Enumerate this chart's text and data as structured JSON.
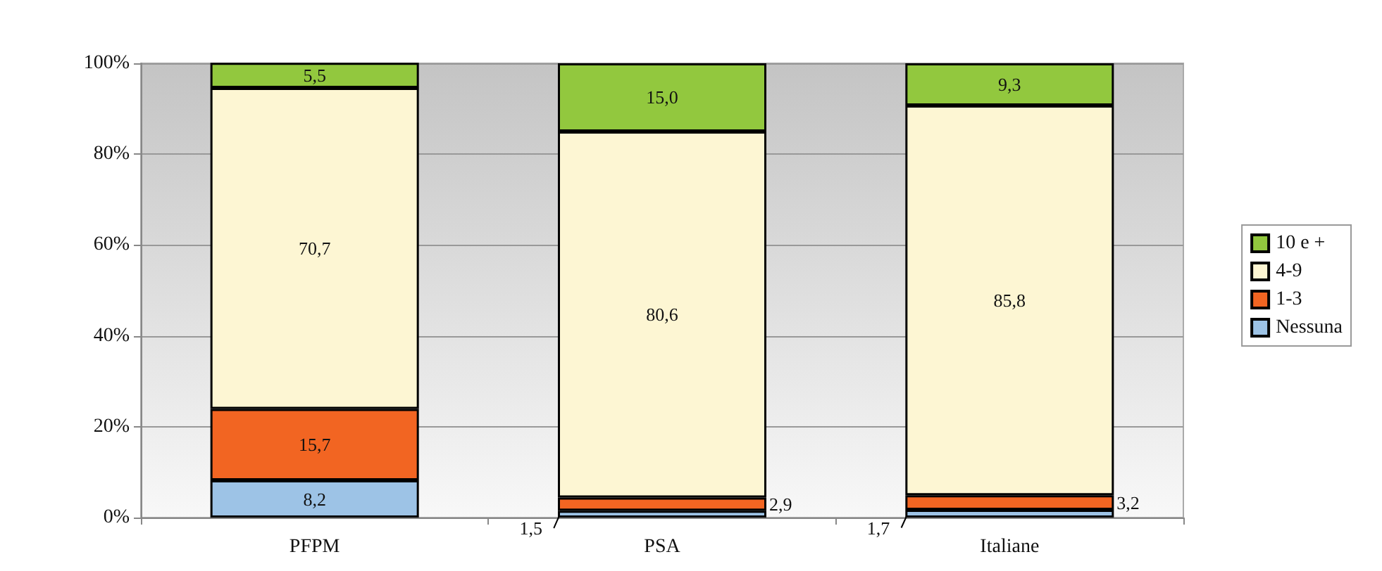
{
  "chart_data": {
    "type": "bar",
    "stacked": true,
    "categories": [
      "PFPM",
      "PSA",
      "Italiane"
    ],
    "series": [
      {
        "name": "Nessuna",
        "color": "#9dc3e6",
        "values": [
          8.2,
          1.5,
          1.7
        ],
        "value_labels": [
          "8,2",
          "1,5",
          "1,7"
        ]
      },
      {
        "name": "1-3",
        "color": "#f26522",
        "values": [
          15.7,
          2.9,
          3.2
        ],
        "value_labels": [
          "15,7",
          "2,9",
          "3,2"
        ]
      },
      {
        "name": "4-9",
        "color": "#fdf6d3",
        "values": [
          70.7,
          80.6,
          85.8
        ],
        "value_labels": [
          "70,7",
          "80,6",
          "85,8"
        ]
      },
      {
        "name": "10 e +",
        "color": "#92c83e",
        "values": [
          5.5,
          15.0,
          9.3
        ],
        "value_labels": [
          "5,5",
          "15,0",
          "9,3"
        ]
      }
    ],
    "ylim": [
      0,
      100
    ],
    "yticks": [
      {
        "value": 0,
        "label": "0%"
      },
      {
        "value": 20,
        "label": "20%"
      },
      {
        "value": 40,
        "label": "40%"
      },
      {
        "value": 60,
        "label": "60%"
      },
      {
        "value": 80,
        "label": "80%"
      },
      {
        "value": 100,
        "label": "100%"
      }
    ],
    "grid": "y",
    "legend": "right"
  }
}
